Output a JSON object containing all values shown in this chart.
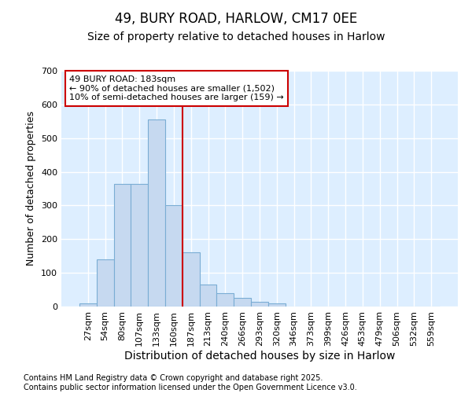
{
  "title": "49, BURY ROAD, HARLOW, CM17 0EE",
  "subtitle": "Size of property relative to detached houses in Harlow",
  "xlabel": "Distribution of detached houses by size in Harlow",
  "ylabel": "Number of detached properties",
  "categories": [
    "27sqm",
    "54sqm",
    "80sqm",
    "107sqm",
    "133sqm",
    "160sqm",
    "187sqm",
    "213sqm",
    "240sqm",
    "266sqm",
    "293sqm",
    "320sqm",
    "346sqm",
    "373sqm",
    "399sqm",
    "426sqm",
    "453sqm",
    "479sqm",
    "506sqm",
    "532sqm",
    "559sqm"
  ],
  "values": [
    10,
    140,
    365,
    365,
    555,
    300,
    160,
    65,
    40,
    25,
    15,
    10,
    0,
    0,
    0,
    0,
    0,
    0,
    0,
    0,
    0
  ],
  "bar_color": "#c6d9f0",
  "bar_edge_color": "#7aadd4",
  "vline_index": 5,
  "vline_color": "#cc0000",
  "annotation_line1": "49 BURY ROAD: 183sqm",
  "annotation_line2": "← 90% of detached houses are smaller (1,502)",
  "annotation_line3": "10% of semi-detached houses are larger (159) →",
  "ylim": [
    0,
    700
  ],
  "yticks": [
    0,
    100,
    200,
    300,
    400,
    500,
    600,
    700
  ],
  "fig_bg_color": "#ffffff",
  "plot_bg_color": "#ddeeff",
  "grid_color": "#ffffff",
  "footnote_line1": "Contains HM Land Registry data © Crown copyright and database right 2025.",
  "footnote_line2": "Contains public sector information licensed under the Open Government Licence v3.0.",
  "title_fontsize": 12,
  "subtitle_fontsize": 10,
  "xlabel_fontsize": 10,
  "ylabel_fontsize": 9,
  "tick_fontsize": 8,
  "annot_fontsize": 8,
  "footnote_fontsize": 7
}
